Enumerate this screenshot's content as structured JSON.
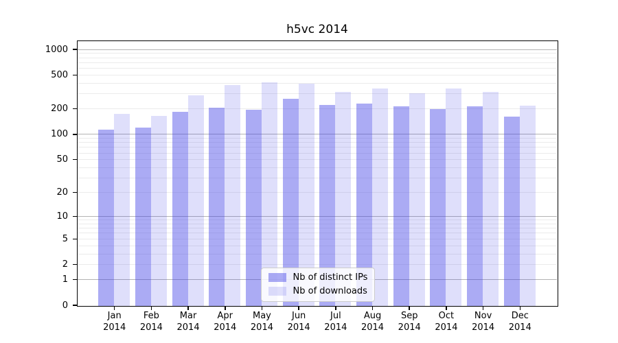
{
  "chart_data": {
    "type": "bar",
    "title": "h5vc 2014",
    "categories": [
      "Jan",
      "Feb",
      "Mar",
      "Apr",
      "May",
      "Jun",
      "Jul",
      "Aug",
      "Sep",
      "Oct",
      "Nov",
      "Dec"
    ],
    "category_year": "2014",
    "series": [
      {
        "name": "Nb of distinct IPs",
        "key": "distinct-ips",
        "color": "rgba(64,64,230,0.44)",
        "values": [
          115,
          122,
          185,
          207,
          196,
          266,
          225,
          235,
          218,
          202,
          215,
          165
        ]
      },
      {
        "name": "Nb of downloads",
        "key": "downloads",
        "color": "rgba(64,64,230,0.17)",
        "values": [
          177,
          168,
          289,
          384,
          415,
          397,
          320,
          354,
          310,
          350,
          320,
          222
        ]
      }
    ],
    "xlabel": "",
    "ylabel": "",
    "yscale": "log1p",
    "yticks": [
      0,
      1,
      2,
      5,
      10,
      20,
      50,
      100,
      200,
      500,
      1000
    ],
    "ylim": [
      0,
      1250
    ],
    "grid": true,
    "grid_major_at": [
      1,
      10,
      100,
      1000
    ],
    "legend_position": "lower center"
  },
  "colors": {
    "background": "#ffffff",
    "spine": "#000000",
    "grid_major": "#b3b3b3",
    "grid_minor": "#ebebeb",
    "text": "#000000"
  }
}
